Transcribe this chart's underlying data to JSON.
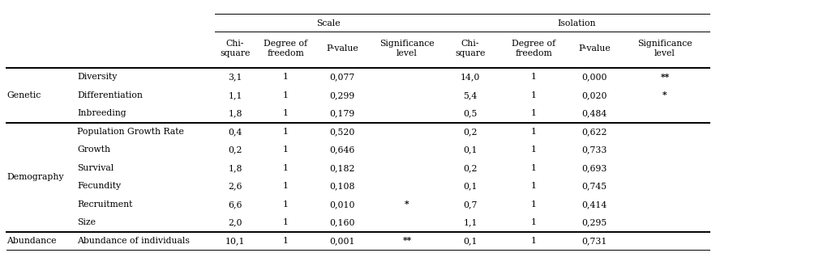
{
  "scale_header": "Scale",
  "isolation_header": "Isolation",
  "col_headers": [
    "Chi-\nsquare",
    "Degree of\nfreedom",
    "P-value",
    "Significance\nlevel",
    "Chi-\nsquare",
    "Degree of\nfreedom",
    "P-value",
    "Significance\nlevel"
  ],
  "row_groups": [
    {
      "group": "Genetic",
      "rows": [
        [
          "Diversity",
          "3,1",
          "1",
          "0,077",
          "",
          "14,0",
          "1",
          "0,000",
          "**"
        ],
        [
          "Differentiation",
          "1,1",
          "1",
          "0,299",
          "",
          "5,4",
          "1",
          "0,020",
          "*"
        ],
        [
          "Inbreeding",
          "1,8",
          "1",
          "0,179",
          "",
          "0,5",
          "1",
          "0,484",
          ""
        ]
      ]
    },
    {
      "group": "Demography",
      "rows": [
        [
          "Population Growth Rate",
          "0,4",
          "1",
          "0,520",
          "",
          "0,2",
          "1",
          "0,622",
          ""
        ],
        [
          "Growth",
          "0,2",
          "1",
          "0,646",
          "",
          "0,1",
          "1",
          "0,733",
          ""
        ],
        [
          "Survival",
          "1,8",
          "1",
          "0,182",
          "",
          "0,2",
          "1",
          "0,693",
          ""
        ],
        [
          "Fecundity",
          "2,6",
          "1",
          "0,108",
          "",
          "0,1",
          "1",
          "0,745",
          ""
        ],
        [
          "Recruitment",
          "6,6",
          "1",
          "0,010",
          "*",
          "0,7",
          "1",
          "0,414",
          ""
        ],
        [
          "Size",
          "2,0",
          "1",
          "0,160",
          "",
          "1,1",
          "1",
          "0,295",
          ""
        ]
      ]
    },
    {
      "group": "Abundance",
      "rows": [
        [
          "Abundance of individuals",
          "10,1",
          "1",
          "0,001",
          "**",
          "0,1",
          "1",
          "0,731",
          ""
        ]
      ]
    }
  ],
  "background_color": "#ffffff",
  "text_color": "#000000",
  "line_color": "#000000",
  "font_size": 7.8,
  "group_row_counts": [
    3,
    6,
    1
  ]
}
